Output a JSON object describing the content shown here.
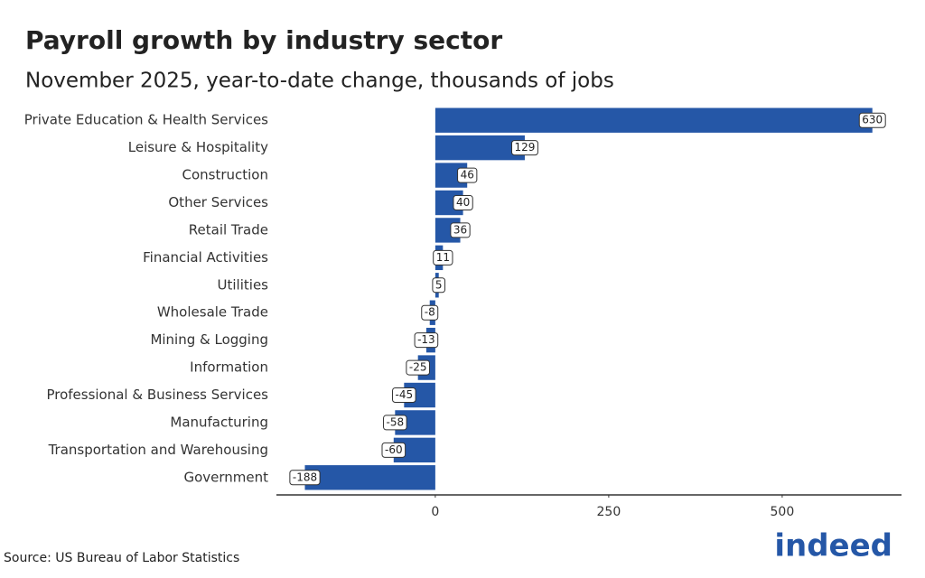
{
  "chart_data": {
    "type": "hbar",
    "title": "Payroll growth by industry sector",
    "subtitle": "November 2025, year-to-date change, thousands of jobs",
    "categories": [
      "Private Education & Health Services",
      "Leisure & Hospitality",
      "Construction",
      "Other Services",
      "Retail Trade",
      "Financial Activities",
      "Utilities",
      "Wholesale Trade",
      "Mining & Logging",
      "Information",
      "Professional & Business Services",
      "Manufacturing",
      "Transportation and Warehousing",
      "Government"
    ],
    "values": [
      630,
      129,
      46,
      40,
      36,
      11,
      5,
      -8,
      -13,
      -25,
      -45,
      -58,
      -60,
      -188
    ],
    "color": "#2557a7",
    "xlim": [
      -229,
      672
    ],
    "xticks": [
      0,
      250,
      500
    ]
  },
  "source": "Source: US Bureau of Labor Statistics",
  "logo": "indeed"
}
